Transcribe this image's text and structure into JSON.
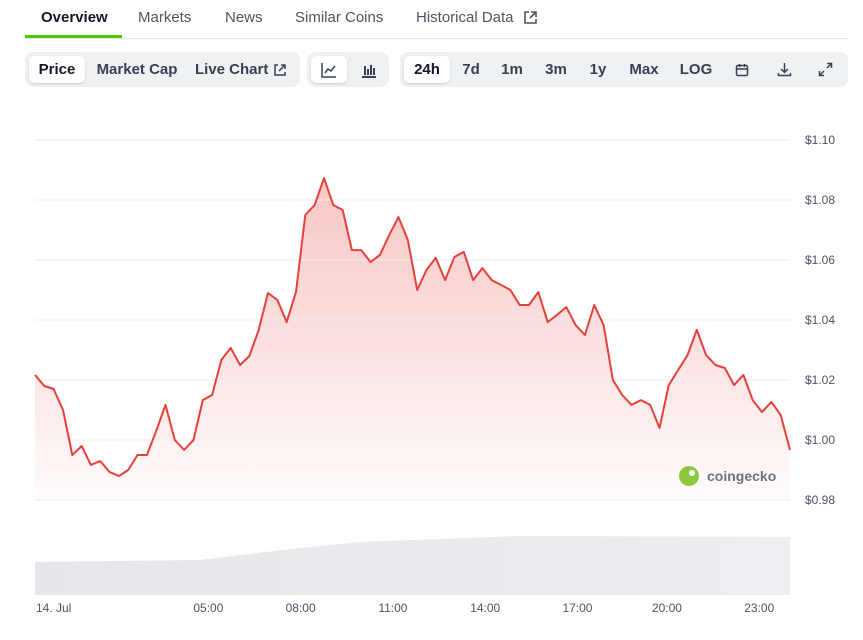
{
  "tabs": [
    "Overview",
    "Markets",
    "News",
    "Similar Coins",
    "Historical Data"
  ],
  "toolbar": {
    "metrics": [
      "Price",
      "Market Cap",
      "Live Chart"
    ],
    "ranges": [
      "24h",
      "7d",
      "1m",
      "3m",
      "1y",
      "Max",
      "LOG"
    ]
  },
  "watermark": "coingecko",
  "chart_data": {
    "type": "line",
    "color": "#e5413a",
    "values": [
      1.0217,
      1.018,
      1.017,
      1.01,
      0.995,
      0.998,
      0.9917,
      0.993,
      0.9893,
      0.988,
      0.99,
      0.995,
      0.995,
      1.003,
      1.0117,
      1.0,
      0.9967,
      1.0,
      1.0133,
      1.015,
      1.0267,
      1.0307,
      1.025,
      1.028,
      1.0367,
      1.049,
      1.0467,
      1.0393,
      1.0493,
      1.075,
      1.0783,
      1.0873,
      1.0783,
      1.0767,
      1.0633,
      1.0633,
      1.0593,
      1.0617,
      1.0683,
      1.0743,
      1.0667,
      1.05,
      1.0567,
      1.0607,
      1.0533,
      1.061,
      1.0627,
      1.0533,
      1.0573,
      1.0533,
      1.0517,
      1.05,
      1.045,
      1.045,
      1.0493,
      1.0393,
      1.0417,
      1.0443,
      1.0383,
      1.035,
      1.045,
      1.0383,
      1.02,
      1.015,
      1.0117,
      1.0133,
      1.0117,
      1.004,
      1.0183,
      1.0233,
      1.0283,
      1.0367,
      1.0283,
      1.025,
      1.024,
      1.0183,
      1.0217,
      1.0133,
      1.0093,
      1.0127,
      1.0083,
      0.9967
    ],
    "xlim": [
      0,
      81
    ],
    "xticks": [
      {
        "value": 2,
        "label": "14. Jul"
      },
      {
        "value": 18.6,
        "label": "05:00"
      },
      {
        "value": 28.5,
        "label": "08:00"
      },
      {
        "value": 38.4,
        "label": "11:00"
      },
      {
        "value": 48.3,
        "label": "14:00"
      },
      {
        "value": 58.2,
        "label": "17:00"
      },
      {
        "value": 67.8,
        "label": "20:00"
      },
      {
        "value": 77.7,
        "label": "23:00"
      }
    ],
    "ylim": [
      0.98,
      1.1
    ],
    "yticks": [
      {
        "value": 0.98,
        "label": "$0.98"
      },
      {
        "value": 1.0,
        "label": "$1.00"
      },
      {
        "value": 1.02,
        "label": "$1.02"
      },
      {
        "value": 1.04,
        "label": "$1.04"
      },
      {
        "value": 1.06,
        "label": "$1.06"
      },
      {
        "value": 1.08,
        "label": "$1.08"
      },
      {
        "value": 1.1,
        "label": "$1.10"
      }
    ],
    "grid": true
  }
}
